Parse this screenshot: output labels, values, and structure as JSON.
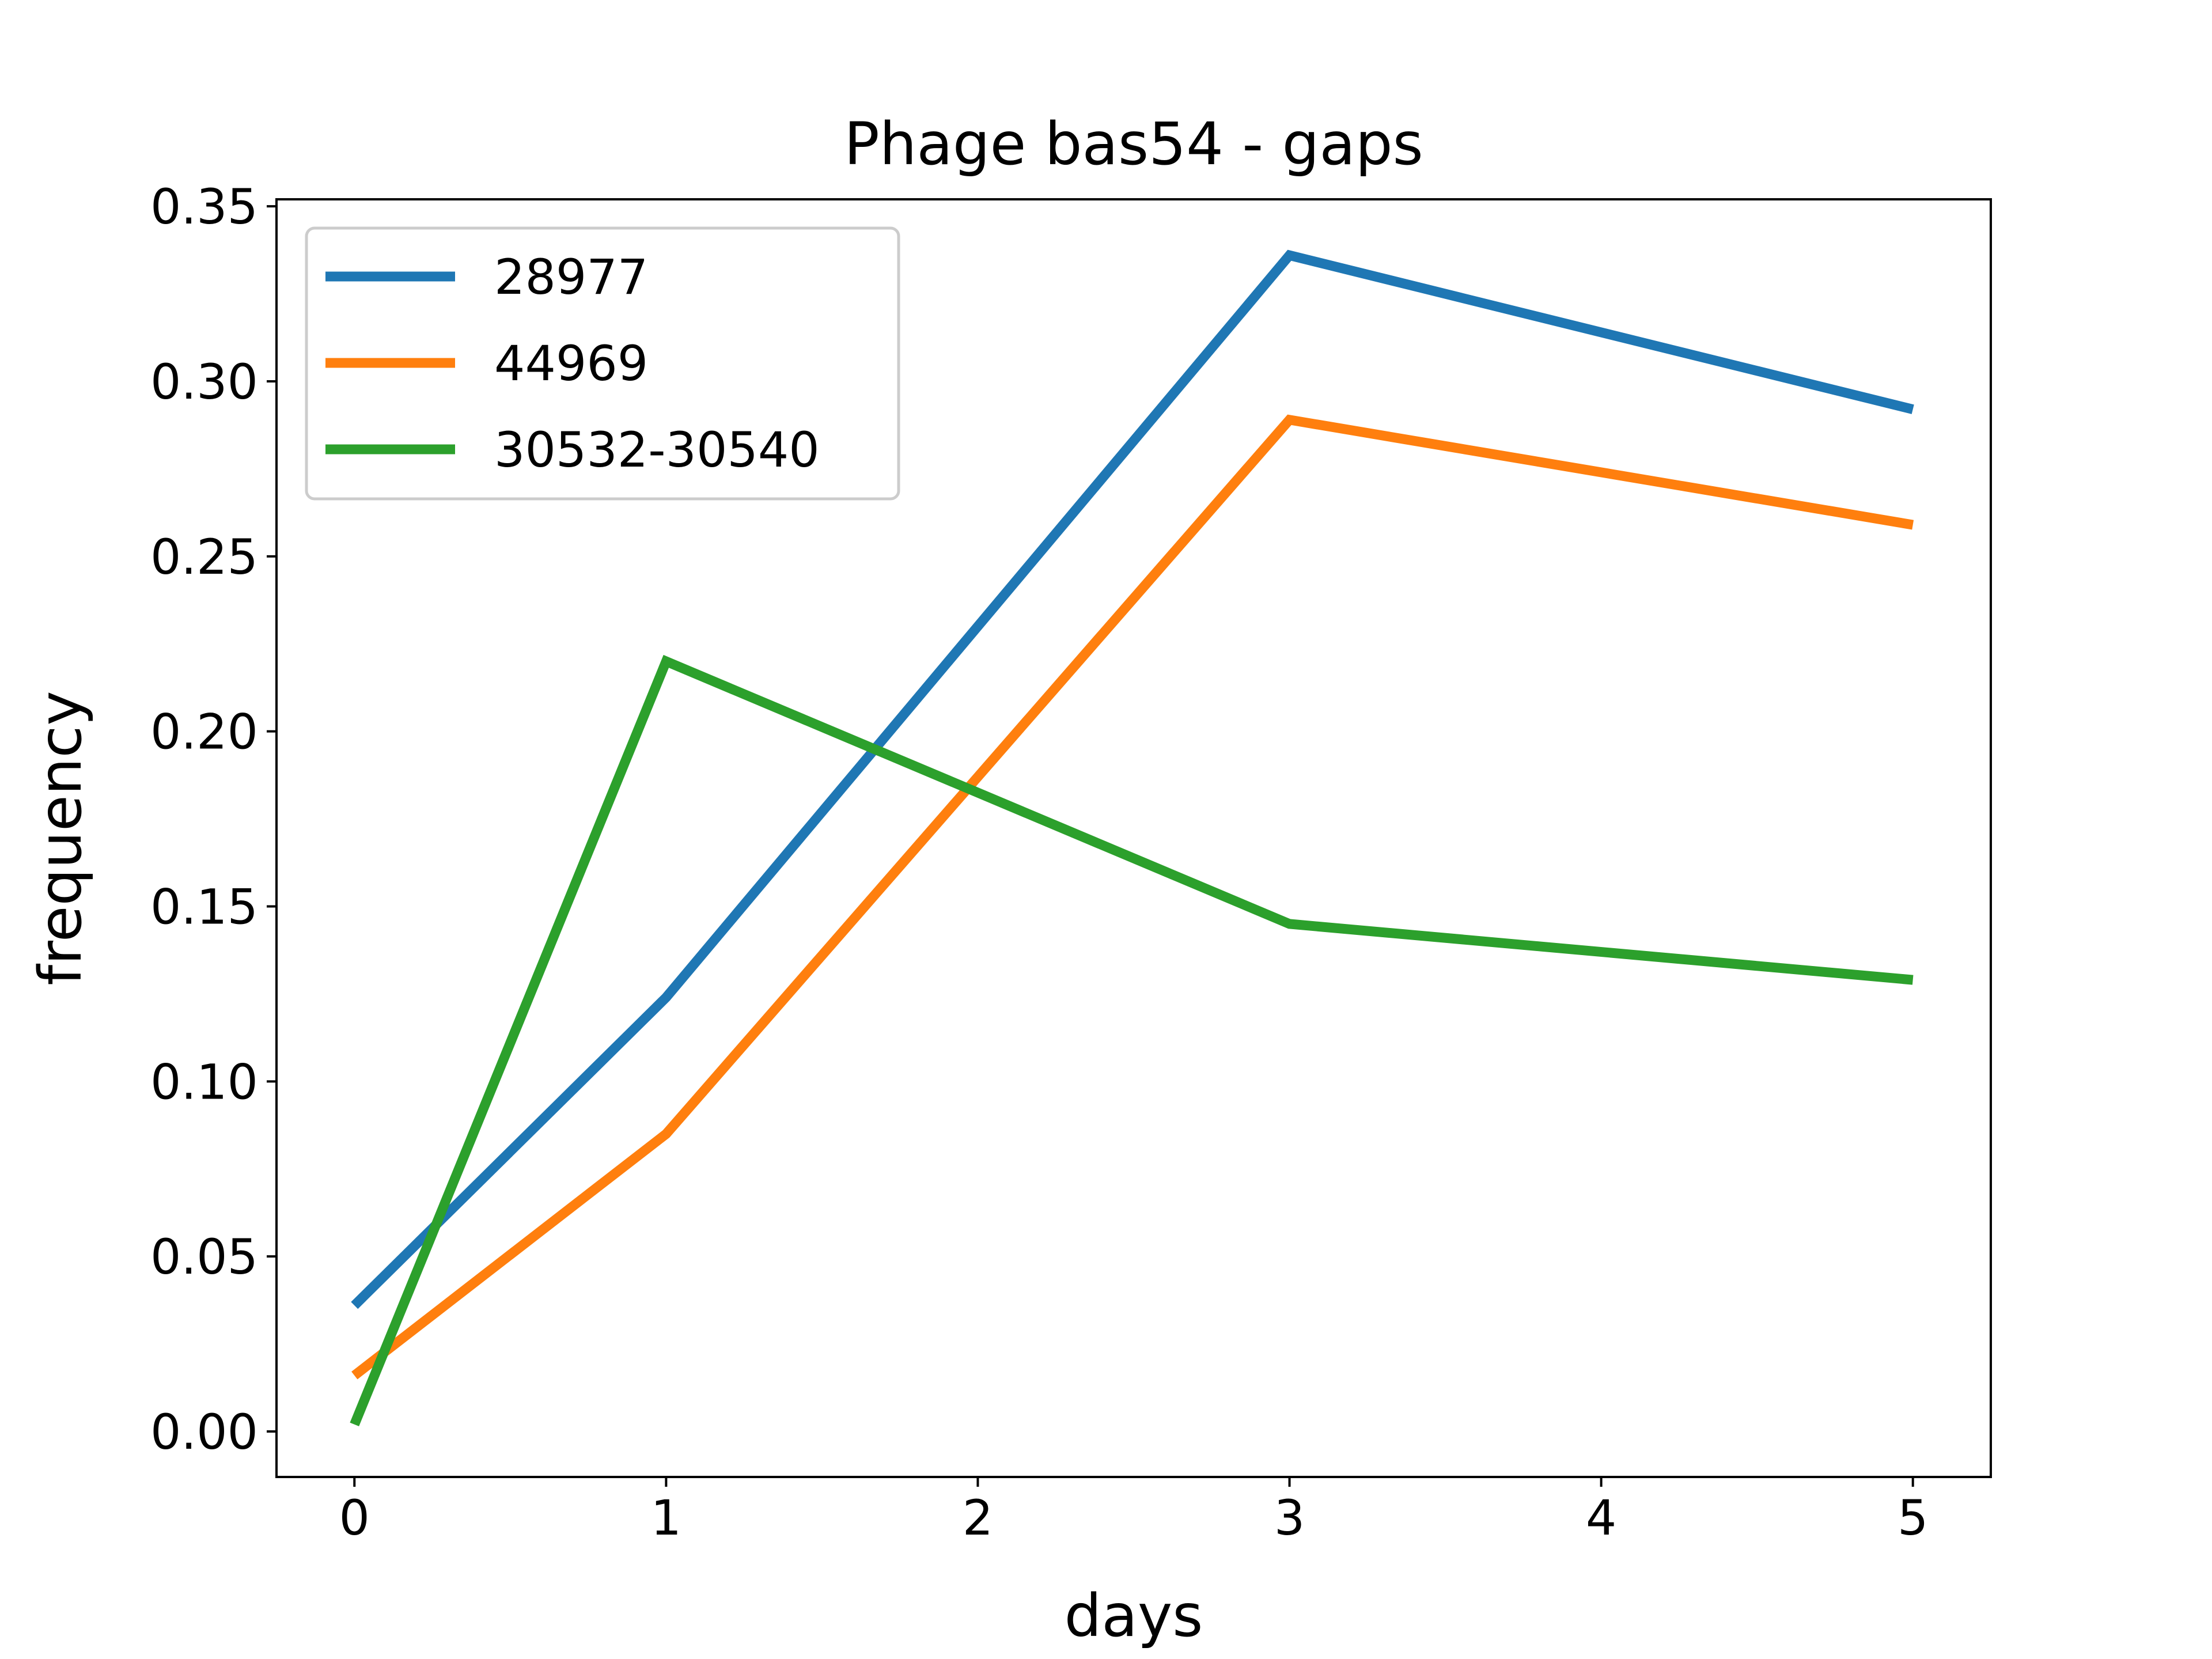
{
  "chart_data": {
    "type": "line",
    "title": "Phage bas54 - gaps",
    "xlabel": "days",
    "ylabel": "frequency",
    "x": [
      0,
      1,
      3,
      5
    ],
    "xlim": [
      -0.25,
      5.25
    ],
    "ylim": [
      -0.013,
      0.352
    ],
    "xticks": [
      0,
      1,
      2,
      3,
      4,
      5
    ],
    "yticks": [
      0.0,
      0.05,
      0.1,
      0.15,
      0.2,
      0.25,
      0.3,
      0.35
    ],
    "ytick_labels": [
      "0.00",
      "0.05",
      "0.10",
      "0.15",
      "0.20",
      "0.25",
      "0.30",
      "0.35"
    ],
    "xtick_labels": [
      "0",
      "1",
      "2",
      "3",
      "4",
      "5"
    ],
    "grid": false,
    "legend_position": "top-left",
    "series": [
      {
        "name": "28977",
        "color": "#1f77b4",
        "values": [
          0.036,
          0.124,
          0.336,
          0.292
        ]
      },
      {
        "name": "44969",
        "color": "#ff7f0e",
        "values": [
          0.016,
          0.085,
          0.289,
          0.259
        ]
      },
      {
        "name": "30532-30540",
        "color": "#2ca02c",
        "values": [
          0.002,
          0.22,
          0.145,
          0.129
        ]
      }
    ]
  }
}
